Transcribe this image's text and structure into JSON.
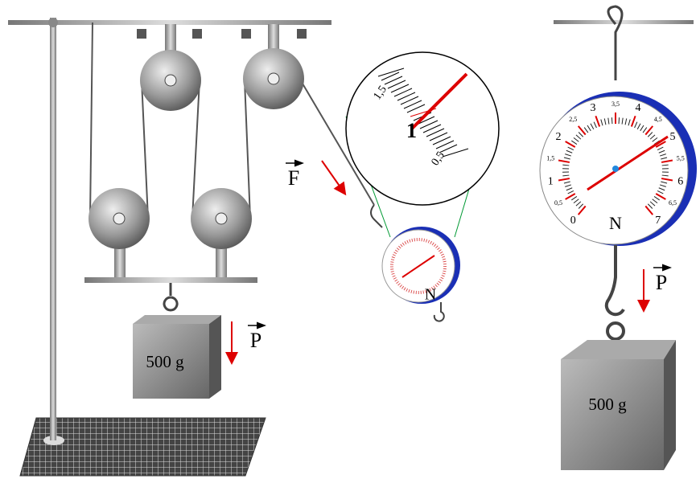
{
  "left_setup": {
    "load_label": "500 g",
    "force_label": "P"
  },
  "pulling_force": {
    "label": "F"
  },
  "zoom": {
    "labels": [
      "1,5",
      "1",
      "0,5"
    ]
  },
  "small_dynamometer": {
    "unit": "N"
  },
  "right_setup": {
    "dynamometer": {
      "unit": "N",
      "scale_labels": [
        "0",
        "0,5",
        "1",
        "1,5",
        "2",
        "2,5",
        "3",
        "3,5",
        "4",
        "4,5",
        "5",
        "5,5",
        "6",
        "6,5",
        "7"
      ]
    },
    "force_label": "P",
    "load_label": "500 g"
  }
}
